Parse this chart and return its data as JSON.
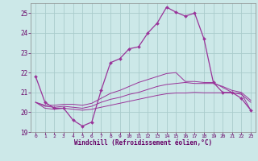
{
  "xlabel": "Windchill (Refroidissement éolien,°C)",
  "bg_color": "#cce8e8",
  "grid_color": "#aacccc",
  "line_color": "#993399",
  "hours": [
    0,
    1,
    2,
    3,
    4,
    5,
    6,
    7,
    8,
    9,
    10,
    11,
    12,
    13,
    14,
    15,
    16,
    17,
    18,
    19,
    20,
    21,
    22,
    23
  ],
  "temp": [
    21.8,
    20.5,
    20.2,
    20.2,
    19.6,
    19.3,
    19.5,
    21.1,
    22.5,
    22.7,
    23.2,
    23.3,
    24.0,
    24.5,
    25.3,
    25.05,
    24.85,
    25.0,
    23.7,
    21.5,
    21.0,
    21.0,
    20.7,
    20.1
  ],
  "wind_line1": [
    20.5,
    20.2,
    20.15,
    20.2,
    20.15,
    20.1,
    20.15,
    20.25,
    20.35,
    20.45,
    20.55,
    20.65,
    20.75,
    20.85,
    20.93,
    20.97,
    20.97,
    21.0,
    20.98,
    20.98,
    20.98,
    20.97,
    20.95,
    20.1
  ],
  "wind_line2": [
    20.5,
    20.3,
    20.25,
    20.3,
    20.25,
    20.2,
    20.3,
    20.5,
    20.65,
    20.75,
    20.9,
    21.0,
    21.15,
    21.3,
    21.4,
    21.45,
    21.5,
    21.45,
    21.45,
    21.45,
    21.3,
    21.1,
    21.0,
    20.6
  ],
  "wind_line3": [
    20.5,
    20.35,
    20.35,
    20.4,
    20.4,
    20.35,
    20.45,
    20.7,
    20.95,
    21.1,
    21.3,
    21.5,
    21.65,
    21.8,
    21.95,
    22.0,
    21.55,
    21.55,
    21.5,
    21.5,
    21.25,
    21.0,
    20.9,
    20.5
  ],
  "ylim": [
    19.0,
    25.5
  ],
  "yticks": [
    19,
    20,
    21,
    22,
    23,
    24,
    25
  ],
  "xlim": [
    -0.5,
    23.5
  ]
}
